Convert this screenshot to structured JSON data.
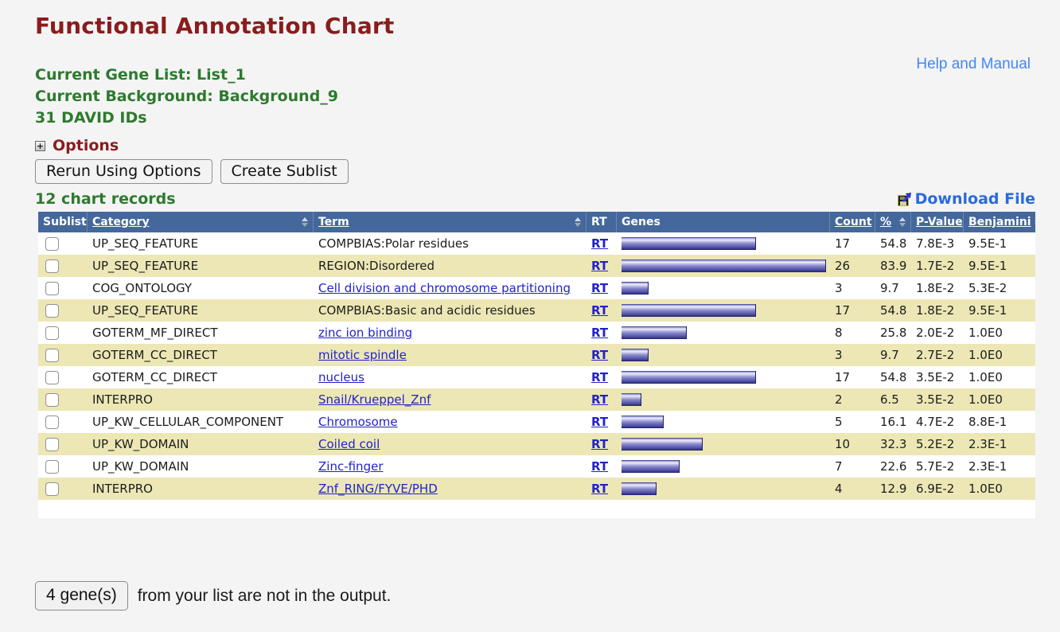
{
  "page": {
    "title": "Functional Annotation Chart",
    "help_link": "Help and Manual",
    "gene_list_line": "Current Gene List: List_1",
    "background_line": "Current Background: Background_9",
    "david_ids_line": "31 DAVID IDs",
    "options_label": "Options",
    "options_expand_glyph": "+",
    "rerun_button": "Rerun Using Options",
    "create_sublist_button": "Create Sublist",
    "records_label": "12 chart records",
    "download_label": "Download File",
    "download_icon": "floppy-disk-with-arrow",
    "sort_icon": "up-down-triangles"
  },
  "footer": {
    "genes_button": "4 gene(s)",
    "genes_note": "from your list are not in the output."
  },
  "colors": {
    "title_red": "#8a1c1c",
    "green": "#2d7a2d",
    "link_blue": "#2222cc",
    "help_blue": "#4386f5",
    "download_blue": "#2a6bdb",
    "header_bg": "#44689c",
    "row_alt": "#ece7b5",
    "bar_dark": "#26266e"
  },
  "table": {
    "columns": [
      {
        "label": "Sublist",
        "sortable": false
      },
      {
        "label": "Category",
        "sortable": true
      },
      {
        "label": "Term",
        "sortable": true
      },
      {
        "label": "RT",
        "sortable": false
      },
      {
        "label": "Genes",
        "sortable": false
      },
      {
        "label": "Count",
        "sortable": true
      },
      {
        "label": "%",
        "sortable": true
      },
      {
        "label": "P-Value",
        "sortable": true
      },
      {
        "label": "Benjamini",
        "sortable": true
      }
    ],
    "rt_label": "RT",
    "rows": [
      {
        "category": "UP_SEQ_FEATURE",
        "term": "COMPBIAS:Polar residues",
        "term_link": false,
        "count": 17,
        "percent": 54.8,
        "pvalue": "7.8E-3",
        "benjamini": "9.5E-1"
      },
      {
        "category": "UP_SEQ_FEATURE",
        "term": "REGION:Disordered",
        "term_link": false,
        "count": 26,
        "percent": 83.9,
        "pvalue": "1.7E-2",
        "benjamini": "9.5E-1"
      },
      {
        "category": "COG_ONTOLOGY",
        "term": "Cell division and chromosome partitioning",
        "term_link": true,
        "count": 3,
        "percent": 9.7,
        "pvalue": "1.8E-2",
        "benjamini": "5.3E-2"
      },
      {
        "category": "UP_SEQ_FEATURE",
        "term": "COMPBIAS:Basic and acidic residues",
        "term_link": false,
        "count": 17,
        "percent": 54.8,
        "pvalue": "1.8E-2",
        "benjamini": "9.5E-1"
      },
      {
        "category": "GOTERM_MF_DIRECT",
        "term": "zinc ion binding",
        "term_link": true,
        "count": 8,
        "percent": 25.8,
        "pvalue": "2.0E-2",
        "benjamini": "1.0E0"
      },
      {
        "category": "GOTERM_CC_DIRECT",
        "term": "mitotic spindle",
        "term_link": true,
        "count": 3,
        "percent": 9.7,
        "pvalue": "2.7E-2",
        "benjamini": "1.0E0"
      },
      {
        "category": "GOTERM_CC_DIRECT",
        "term": "nucleus",
        "term_link": true,
        "count": 17,
        "percent": 54.8,
        "pvalue": "3.5E-2",
        "benjamini": "1.0E0"
      },
      {
        "category": "INTERPRO",
        "term": "Snail/Krueppel_Znf",
        "term_link": true,
        "count": 2,
        "percent": 6.5,
        "pvalue": "3.5E-2",
        "benjamini": "1.0E0"
      },
      {
        "category": "UP_KW_CELLULAR_COMPONENT",
        "term": "Chromosome",
        "term_link": true,
        "count": 5,
        "percent": 16.1,
        "pvalue": "4.7E-2",
        "benjamini": "8.8E-1"
      },
      {
        "category": "UP_KW_DOMAIN",
        "term": "Coiled coil",
        "term_link": true,
        "count": 10,
        "percent": 32.3,
        "pvalue": "5.2E-2",
        "benjamini": "2.3E-1"
      },
      {
        "category": "UP_KW_DOMAIN",
        "term": "Zinc-finger",
        "term_link": true,
        "count": 7,
        "percent": 22.6,
        "pvalue": "5.7E-2",
        "benjamini": "2.3E-1"
      },
      {
        "category": "INTERPRO",
        "term": "Znf_RING/FYVE/PHD",
        "term_link": true,
        "count": 4,
        "percent": 12.9,
        "pvalue": "6.9E-2",
        "benjamini": "1.0E0"
      }
    ]
  }
}
